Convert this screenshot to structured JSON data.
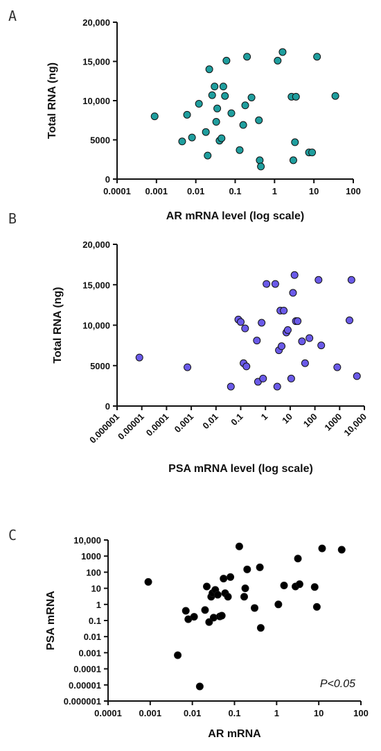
{
  "chart_data": [
    {
      "panel": "A",
      "type": "scatter",
      "xlabel": "AR mRNA level (log scale)",
      "ylabel": "Total RNA (ng)",
      "xscale": "log",
      "xlim": [
        0.0001,
        100
      ],
      "ylim": [
        0,
        20000
      ],
      "xticks": [
        "0.0001",
        "0.001",
        "0.01",
        "0.1",
        "1",
        "10",
        "100"
      ],
      "yticks": [
        "0",
        "5000",
        "10,000",
        "15,000",
        "20,000"
      ],
      "point_color": "#1f9e9e",
      "x": [
        0.0009,
        0.0045,
        0.006,
        0.008,
        0.012,
        0.018,
        0.02,
        0.022,
        0.026,
        0.03,
        0.033,
        0.035,
        0.04,
        0.045,
        0.05,
        0.055,
        0.06,
        0.08,
        0.13,
        0.16,
        0.18,
        0.2,
        0.26,
        0.4,
        0.42,
        0.45,
        1.2,
        1.6,
        2.7,
        3.0,
        3.3,
        3.5,
        7.5,
        9.0,
        12.0,
        35.0
      ],
      "y": [
        8000,
        4800,
        8200,
        5300,
        9600,
        6000,
        3000,
        14000,
        10700,
        11800,
        7300,
        9000,
        4900,
        5200,
        11800,
        10600,
        15100,
        8400,
        3700,
        6900,
        9400,
        15600,
        10400,
        7500,
        2400,
        1600,
        15100,
        16200,
        10500,
        2400,
        4700,
        10500,
        3400,
        3400,
        15600,
        10600
      ]
    },
    {
      "panel": "B",
      "type": "scatter",
      "xlabel": "PSA mRNA level (log scale)",
      "ylabel": "Total RNA (ng)",
      "xscale": "log",
      "xlim": [
        1e-06,
        10000
      ],
      "ylim": [
        0,
        20000
      ],
      "xticks": [
        "0.000001",
        "0.00001",
        "0.0001",
        "0.001",
        "0.01",
        "0.1",
        "1",
        "10",
        "100",
        "1000",
        "10,000"
      ],
      "yticks": [
        "0",
        "5000",
        "10,000",
        "15,000",
        "20,000"
      ],
      "point_color": "#6a5ae8",
      "x": [
        8e-06,
        0.0007,
        0.04,
        0.08,
        0.1,
        0.13,
        0.15,
        0.17,
        0.45,
        0.5,
        0.7,
        0.8,
        1.1,
        2.5,
        3.0,
        3.5,
        4.0,
        4.5,
        5.5,
        7.0,
        8.0,
        11.0,
        13.0,
        15.0,
        17.0,
        20.0,
        30.0,
        40.0,
        60.0,
        140.0,
        180.0,
        800.0,
        2500.0,
        3000.0,
        5000.0
      ],
      "y": [
        6000,
        4800,
        2400,
        10700,
        10400,
        5300,
        9600,
        4900,
        8100,
        3000,
        10300,
        3400,
        15100,
        15100,
        2400,
        6900,
        11800,
        7400,
        11800,
        9100,
        9400,
        3400,
        14000,
        16200,
        10500,
        10500,
        8000,
        5300,
        8400,
        15600,
        7500,
        4800,
        10600,
        15600,
        3700
      ]
    },
    {
      "panel": "C",
      "type": "scatter",
      "xlabel": "AR mRNA",
      "ylabel": "PSA mRNA",
      "xscale": "log",
      "yscale": "log",
      "xlim": [
        0.0001,
        100
      ],
      "ylim": [
        1e-06,
        10000
      ],
      "xticks": [
        "0.0001",
        "0.001",
        "0.01",
        "0.1",
        "1",
        "10",
        "100"
      ],
      "yticks": [
        "0.000001",
        "0.00001",
        "0.0001",
        "0.001",
        "0.01",
        "0.1",
        "1",
        "10",
        "100",
        "1000",
        "10,000"
      ],
      "point_color": "#000000",
      "xlabel_color": "#1f9e9e",
      "ylabel_color": "#6a5ae8",
      "annotation": "P<0.05",
      "x": [
        0.0009,
        0.0045,
        0.007,
        0.008,
        0.011,
        0.015,
        0.02,
        0.022,
        0.025,
        0.028,
        0.03,
        0.032,
        0.035,
        0.04,
        0.045,
        0.05,
        0.055,
        0.06,
        0.07,
        0.08,
        0.13,
        0.17,
        0.18,
        0.2,
        0.3,
        0.4,
        0.42,
        1.1,
        1.5,
        2.8,
        3.2,
        3.5,
        8.0,
        9.0,
        12.0,
        35.0
      ],
      "y": [
        25,
        0.0007,
        0.4,
        0.12,
        0.17,
        8e-06,
        0.45,
        13,
        0.08,
        3,
        5,
        0.15,
        8,
        4,
        0.18,
        0.2,
        40,
        5,
        3,
        50,
        4000,
        3,
        10,
        150,
        0.6,
        200,
        0.035,
        1,
        15,
        13,
        700,
        18,
        12,
        0.7,
        3000,
        2500
      ]
    }
  ]
}
